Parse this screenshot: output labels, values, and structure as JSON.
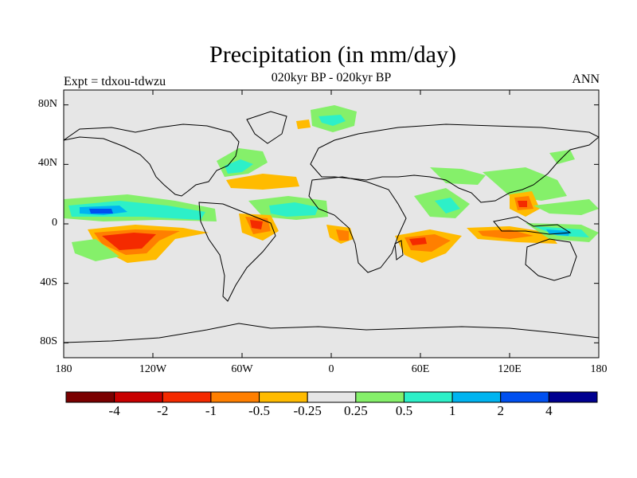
{
  "title": "Precipitation (in mm/day)",
  "subtitle": "020kyr BP - 020kyr BP",
  "left_label": "Expt = tdxou-tdwzu",
  "right_label": "ANN",
  "lat_ticks": [
    {
      "label": "80N",
      "lat": 80
    },
    {
      "label": "40N",
      "lat": 40
    },
    {
      "label": "0",
      "lat": 0
    },
    {
      "label": "40S",
      "lat": -40
    },
    {
      "label": "80S",
      "lat": -80
    }
  ],
  "lon_ticks": [
    {
      "label": "180",
      "lon": -180
    },
    {
      "label": "120W",
      "lon": -120
    },
    {
      "label": "60W",
      "lon": -60
    },
    {
      "label": "0",
      "lon": 0
    },
    {
      "label": "60E",
      "lon": 60
    },
    {
      "label": "120E",
      "lon": 120
    },
    {
      "label": "180",
      "lon": 180
    }
  ],
  "colorbar": {
    "colors": [
      "#7a0000",
      "#c80000",
      "#f42a00",
      "#ff7f00",
      "#ffbb00",
      "#e6e6e6",
      "#85f06a",
      "#2df0c8",
      "#00b4f0",
      "#0050f0",
      "#000090"
    ],
    "labels": [
      "-4",
      "-2",
      "-1",
      "-0.5",
      "-0.25",
      "0.25",
      "0.5",
      "1",
      "2",
      "4"
    ]
  },
  "colors": {
    "background": "#e6e6e6",
    "coastline": "#000000"
  }
}
